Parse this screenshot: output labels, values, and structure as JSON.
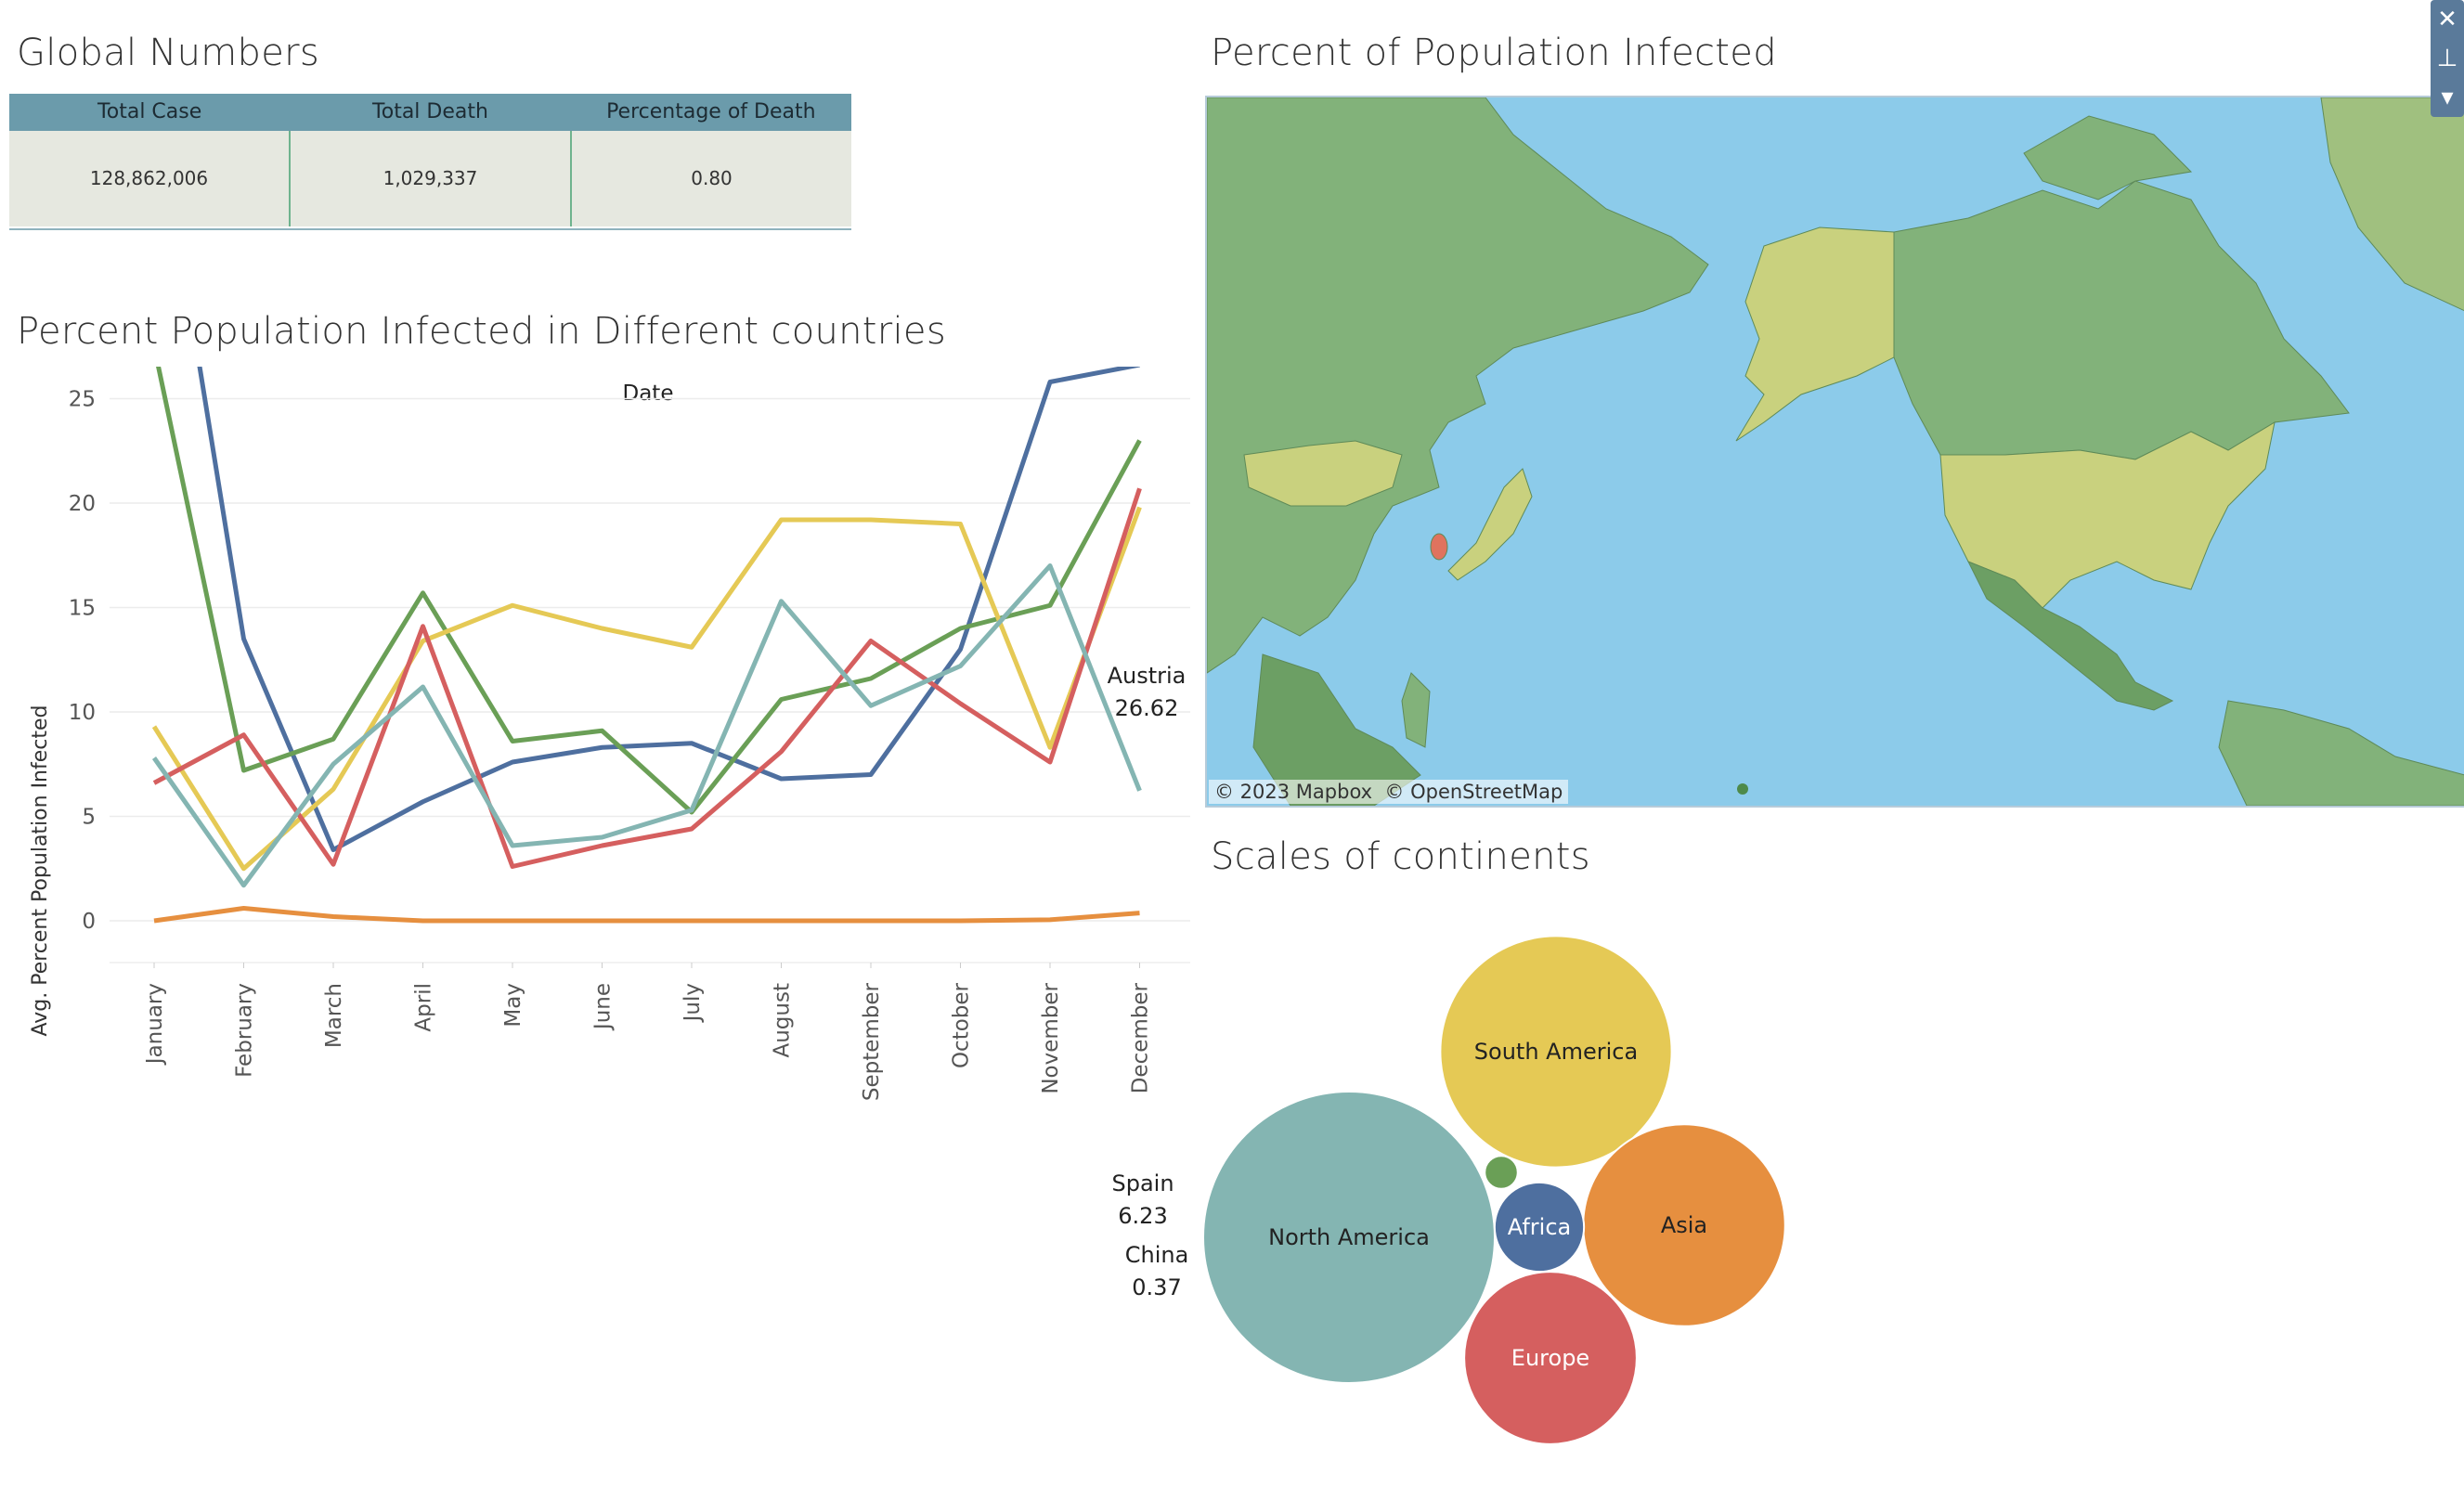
{
  "titles": {
    "global": "Global Numbers",
    "map": "Percent of Population Infected",
    "line": "Percent Population Infected in Different countries",
    "bubble": "Scales of continents"
  },
  "kpi": {
    "headers": [
      "Total Case",
      "Total Death",
      "Percentage of Death"
    ],
    "values": [
      "128,862,006",
      "1,029,337",
      "0.80"
    ]
  },
  "map": {
    "attribution": "© 2023 Mapbox  © OpenStreetMap",
    "controls": [
      "close-icon",
      "pin-icon",
      "dropdown-arrow-icon"
    ]
  },
  "colors": {
    "ocean": "#8ccbea",
    "land": "#82b27a",
    "land_dark": "#6c9f64",
    "land_yellow": "#c9d17e",
    "highlight": "#e0735e"
  },
  "chart_data": [
    {
      "type": "line",
      "title": "Percent Population Infected in Different countries",
      "top_label": "Date",
      "xlabel": "Date",
      "ylabel": "Avg. Percent Population Infected",
      "ylim": [
        -2,
        42
      ],
      "yticks": [
        0,
        5,
        10,
        15,
        20,
        25,
        30,
        35,
        40
      ],
      "grid": true,
      "categories": [
        "January",
        "February",
        "March",
        "April",
        "May",
        "June",
        "July",
        "August",
        "September",
        "October",
        "November",
        "December"
      ],
      "series": [
        {
          "name": "Austria",
          "color": "#4e6f9f",
          "label_value": "26.62",
          "values": [
            40.0,
            13.5,
            3.4,
            5.7,
            7.6,
            8.3,
            8.5,
            6.8,
            7.0,
            13.0,
            25.8,
            26.62
          ]
        },
        {
          "color": "#6a9f56",
          "values": [
            27.5,
            7.2,
            8.7,
            15.7,
            8.6,
            9.1,
            5.2,
            10.6,
            11.6,
            14.0,
            15.1,
            23.0
          ]
        },
        {
          "color": "#e5c955",
          "values": [
            9.3,
            2.5,
            6.3,
            13.4,
            15.1,
            14.0,
            13.1,
            19.2,
            19.2,
            19.0,
            8.3,
            19.8
          ]
        },
        {
          "color": "#d55f5f",
          "values": [
            6.6,
            8.9,
            2.7,
            14.1,
            2.6,
            3.6,
            4.4,
            8.1,
            13.4,
            10.4,
            7.6,
            20.7
          ]
        },
        {
          "name": "Spain",
          "color": "#84b5b2",
          "label_value": "6.23",
          "values": [
            7.8,
            1.7,
            7.5,
            11.2,
            3.6,
            4.0,
            5.3,
            15.3,
            10.3,
            12.2,
            17.0,
            6.23
          ]
        },
        {
          "name": "China",
          "color": "#e68f3f",
          "label_value": "0.37",
          "values": [
            0.0,
            0.6,
            0.2,
            0.0,
            0.0,
            0.0,
            0.0,
            0.0,
            0.0,
            0.0,
            0.05,
            0.37
          ]
        }
      ]
    },
    {
      "type": "bubble",
      "title": "Scales of continents",
      "items": [
        {
          "name": "North America",
          "color": "#84b5b2",
          "size": 1.0
        },
        {
          "name": "South America",
          "color": "#e5c955",
          "size": 0.63
        },
        {
          "name": "Asia",
          "color": "#e68f3f",
          "size": 0.48
        },
        {
          "name": "Europe",
          "color": "#d55f5f",
          "size": 0.35
        },
        {
          "name": "Africa",
          "color": "#4e6f9f",
          "size": 0.094
        },
        {
          "name": "",
          "color": "#6a9f56",
          "size": 0.0128
        }
      ]
    }
  ]
}
